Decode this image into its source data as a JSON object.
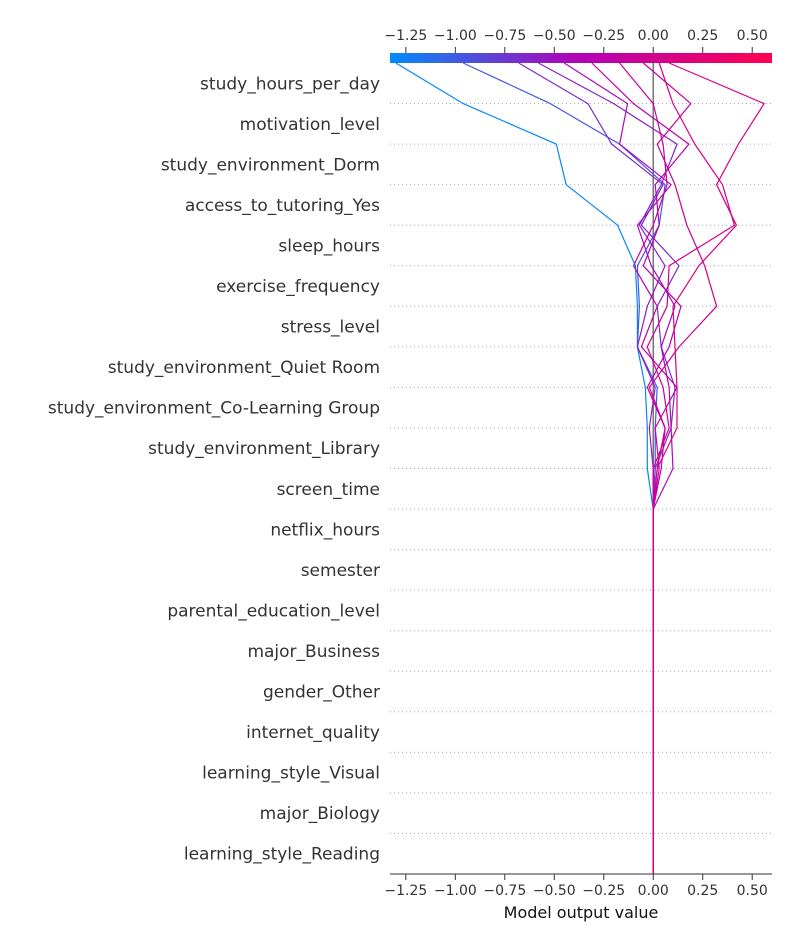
{
  "chart_data": {
    "type": "line",
    "subtype": "shap-decision-plot",
    "xlabel": "Model output value",
    "xlim": [
      -1.33,
      0.6
    ],
    "xticks": [
      -1.25,
      -1.0,
      -0.75,
      -0.5,
      -0.25,
      0.0,
      0.25,
      0.5
    ],
    "xtick_labels": [
      "−1.25",
      "−1.00",
      "−0.75",
      "−0.50",
      "−0.25",
      "0.00",
      "0.25",
      "0.50"
    ],
    "base_value": 0.0,
    "features": [
      "study_hours_per_day",
      "motivation_level",
      "study_environment_Dorm",
      "access_to_tutoring_Yes",
      "sleep_hours",
      "exercise_frequency",
      "stress_level",
      "study_environment_Quiet Room",
      "study_environment_Co-Learning Group",
      "study_environment_Library",
      "screen_time",
      "netflix_hours",
      "semester",
      "parental_education_level",
      "major_Business",
      "gender_Other",
      "internet_quality",
      "learning_style_Visual",
      "major_Biology",
      "learning_style_Reading"
    ],
    "colorbar": {
      "low_color": "#008bfb",
      "mid_color": "#b400b4",
      "high_color": "#ff0052",
      "range": [
        -1.33,
        0.6
      ]
    },
    "series": [
      {
        "points": [
          -1.3,
          -0.96,
          -0.49,
          -0.44,
          -0.18,
          -0.09,
          -0.08,
          -0.08,
          -0.04,
          -0.03,
          -0.03,
          0.0,
          0.0,
          0.0,
          0.0,
          0.0,
          0.0,
          0.0,
          0.0,
          0.0,
          0.0
        ]
      },
      {
        "points": [
          -0.96,
          -0.52,
          -0.17,
          0.06,
          0.03,
          -0.08,
          -0.07,
          -0.08,
          0.02,
          0.01,
          0.01,
          0.0,
          0.0,
          0.0,
          0.0,
          0.0,
          0.0,
          0.0,
          0.0,
          0.0,
          0.0
        ]
      },
      {
        "points": [
          -0.68,
          -0.33,
          -0.21,
          0.05,
          -0.06,
          0.13,
          0.02,
          0.04,
          0.11,
          0.09,
          0.01,
          0.0,
          0.0,
          0.0,
          0.0,
          0.0,
          0.0,
          0.0,
          0.0,
          0.0,
          0.0
        ]
      },
      {
        "points": [
          -0.58,
          -0.2,
          0.12,
          0.04,
          -0.07,
          0.06,
          -0.03,
          -0.08,
          0.01,
          -0.02,
          0.0,
          0.0,
          0.0,
          0.0,
          0.0,
          0.0,
          0.0,
          0.0,
          0.0,
          0.0,
          0.0
        ]
      },
      {
        "points": [
          -0.45,
          -0.13,
          -0.17,
          0.09,
          -0.08,
          -0.01,
          0.11,
          0.04,
          0.08,
          0.09,
          0.1,
          0.0,
          0.0,
          0.0,
          0.0,
          0.0,
          0.0,
          0.0,
          0.0,
          0.0,
          0.0
        ]
      },
      {
        "points": [
          -0.31,
          -0.1,
          0.18,
          0.01,
          0.03,
          -0.05,
          0.14,
          0.08,
          -0.03,
          0.06,
          0.04,
          0.0,
          0.0,
          0.0,
          0.0,
          0.0,
          0.0,
          0.0,
          0.0,
          0.0,
          0.0
        ]
      },
      {
        "points": [
          -0.17,
          0.0,
          0.05,
          0.07,
          0.0,
          -0.1,
          0.02,
          -0.06,
          0.12,
          0.01,
          0.03,
          0.0,
          0.0,
          0.0,
          0.0,
          0.0,
          0.0,
          0.0,
          0.0,
          0.0,
          0.0
        ]
      },
      {
        "points": [
          -0.05,
          0.19,
          0.02,
          0.11,
          0.17,
          0.26,
          0.32,
          0.13,
          -0.02,
          0.06,
          0.02,
          0.0,
          0.0,
          0.0,
          0.0,
          0.0,
          0.0,
          0.0,
          0.0,
          0.0,
          0.0
        ]
      },
      {
        "points": [
          0.03,
          0.1,
          0.21,
          0.35,
          0.41,
          0.08,
          0.07,
          -0.03,
          0.05,
          0.08,
          0.0,
          0.0,
          0.0,
          0.0,
          0.0,
          0.0,
          0.0,
          0.0,
          0.0,
          0.0,
          0.0
        ]
      },
      {
        "points": [
          0.08,
          0.56,
          0.43,
          0.32,
          0.42,
          0.23,
          0.1,
          0.11,
          0.12,
          0.12,
          0.02,
          0.0,
          0.0,
          0.0,
          0.0,
          0.0,
          0.0,
          0.0,
          0.0,
          0.0,
          0.0
        ]
      }
    ]
  }
}
